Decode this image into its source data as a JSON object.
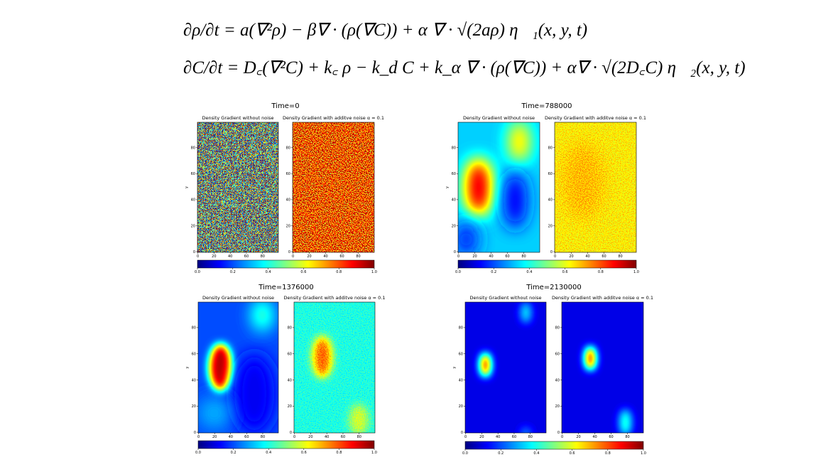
{
  "equations": [
    "∂ρ/∂t = a(∇²ρ) − β∇ · (ρ(∇C)) + α ∇ · √(2aρ) η⃗₁(x, y, t)",
    "∂C/∂t = D꜀(∇²C) + k꜀ ρ − k_d C + k_α ∇ · (ρ(∇C)) + α∇ · √(2D꜀C) η⃗₂(x, y, t)"
  ],
  "panels": [
    {
      "title": "Time=0",
      "left_title": "Density Gradient without noise",
      "right_title": "Density Gradient with additve noise α = 0.1",
      "y_label": "y",
      "xticks": [
        "0",
        "20",
        "40",
        "60",
        "80"
      ],
      "yticks": [
        "0",
        "20",
        "40",
        "60",
        "80"
      ],
      "colorbar_ticks": [
        "0.0",
        "0.2",
        "0.4",
        "0.6",
        "0.8",
        "1.0"
      ]
    },
    {
      "title": "Time=788000",
      "left_title": "Density Gradient without noise",
      "right_title": "Density Gradient with additve noise α = 0.1",
      "y_label": "y",
      "xticks": [
        "0",
        "20",
        "40",
        "60",
        "80"
      ],
      "yticks": [
        "0",
        "20",
        "40",
        "60",
        "80"
      ],
      "colorbar_ticks": [
        "0.0",
        "0.2",
        "0.4",
        "0.6",
        "0.8",
        "1.0"
      ]
    },
    {
      "title": "Time=1376000",
      "left_title": "Density Gradient without noise",
      "right_title": "Density Gradient with additve noise α = 0.1",
      "y_label": "y",
      "xticks": [
        "0",
        "20",
        "40",
        "60",
        "80"
      ],
      "yticks": [
        "0",
        "20",
        "40",
        "60",
        "80"
      ],
      "colorbar_ticks": [
        "0.0",
        "0.2",
        "0.4",
        "0.6",
        "0.8",
        "1.0"
      ]
    },
    {
      "title": "Time=2130000",
      "left_title": "Density Gradient without noise",
      "right_title": "Density Gradient with additve noise α = 0.1",
      "y_label": "y",
      "xticks": [
        "0",
        "20",
        "40",
        "60",
        "80"
      ],
      "yticks": [
        "0",
        "20",
        "40",
        "60",
        "80"
      ],
      "colorbar_ticks": [
        "0.0",
        "0.2",
        "0.4",
        "0.6",
        "0.8",
        "1.0"
      ]
    }
  ]
}
